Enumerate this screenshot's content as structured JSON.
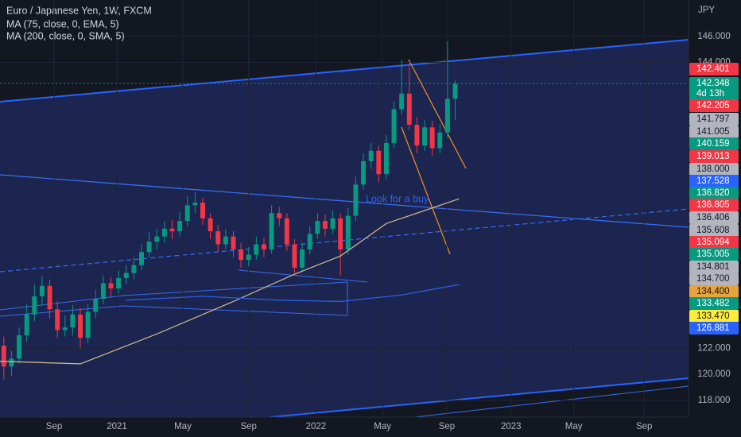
{
  "chart_data": {
    "type": "candlestick",
    "title": "Euro / Japanese Yen, 1W, FXCM",
    "axis_label": "JPY",
    "annotation": "Look for a buy",
    "countdown": "4d 13h",
    "up_color": "#089981",
    "down_color": "#f23645",
    "xlim": [
      -0.5,
      89.5
    ],
    "xticks": [
      {
        "value": 6.57,
        "label": "Sep"
      },
      {
        "value": 14.78,
        "label": "2021"
      },
      {
        "value": 23.4,
        "label": "May"
      },
      {
        "value": 32.0,
        "label": "Sep"
      },
      {
        "value": 40.8,
        "label": "2022"
      },
      {
        "value": 49.5,
        "label": "May"
      },
      {
        "value": 57.9,
        "label": "Sep"
      },
      {
        "value": 66.3,
        "label": "2023"
      },
      {
        "value": 74.5,
        "label": "May"
      },
      {
        "value": 83.7,
        "label": "Sep"
      }
    ],
    "ylim": [
      116.7,
      148.8
    ],
    "yticks": [
      {
        "value": 146,
        "label": "146.000"
      },
      {
        "value": 144,
        "label": "144.000"
      },
      {
        "value": 122,
        "label": "122.000"
      },
      {
        "value": 120,
        "label": "120.000"
      },
      {
        "value": 118,
        "label": "118.000"
      }
    ],
    "grid": true,
    "last_price": 142.35,
    "open": [
      122.2,
      120.6,
      121.2,
      123.0,
      124.6,
      126.0,
      126.8,
      125.0,
      123.4,
      123.6,
      124.6,
      122.8,
      124.8,
      125.8,
      127.0,
      126.6,
      127.4,
      127.8,
      128.4,
      129.4,
      130.2,
      130.6,
      131.2,
      131.0,
      131.8,
      133.0,
      133.2,
      132.0,
      131.0,
      130.0,
      130.6,
      129.6,
      128.8,
      129.2,
      130.0,
      129.6,
      132.4,
      132.0,
      130.0,
      128.2,
      129.6,
      130.8,
      131.8,
      131.2,
      132.0,
      129.6,
      132.2,
      134.6,
      136.4,
      137.2,
      135.4,
      137.8,
      140.4,
      141.6,
      139.2,
      137.6,
      139.0,
      137.4,
      138.6,
      141.2
    ],
    "high": [
      122.9,
      121.8,
      123.6,
      125.4,
      126.9,
      127.6,
      127.3,
      125.6,
      124.5,
      125.3,
      125.1,
      125.4,
      126.5,
      127.6,
      127.5,
      128.0,
      128.4,
      129.0,
      130.0,
      130.9,
      131.2,
      131.8,
      131.9,
      132.5,
      133.7,
      134.0,
      133.6,
      132.4,
      131.5,
      131.2,
      131.0,
      130.1,
      129.8,
      130.6,
      130.5,
      133.0,
      132.9,
      132.4,
      130.4,
      130.1,
      131.4,
      132.4,
      132.3,
      132.6,
      132.4,
      132.8,
      135.2,
      137.0,
      137.8,
      137.6,
      138.4,
      141.0,
      144.2,
      144.0,
      139.8,
      139.6,
      139.5,
      139.2,
      145.6,
      142.6
    ],
    "low": [
      119.6,
      119.9,
      120.8,
      122.5,
      124.1,
      125.3,
      124.3,
      122.8,
      122.9,
      123.0,
      122.0,
      122.4,
      124.3,
      125.4,
      126.0,
      126.2,
      126.9,
      127.3,
      128.0,
      129.0,
      129.6,
      130.1,
      130.4,
      130.6,
      131.4,
      132.4,
      131.5,
      130.4,
      129.4,
      129.6,
      129.0,
      128.2,
      128.3,
      128.8,
      129.0,
      129.3,
      131.4,
      129.5,
      127.8,
      127.9,
      129.2,
      130.4,
      130.6,
      130.8,
      127.6,
      129.2,
      131.8,
      134.2,
      135.8,
      134.8,
      135.0,
      137.4,
      140.0,
      138.8,
      137.0,
      137.2,
      136.8,
      137.0,
      138.2,
      139.6
    ],
    "close": [
      120.6,
      121.2,
      123.0,
      124.6,
      126.0,
      126.8,
      125.0,
      123.4,
      123.6,
      124.6,
      122.8,
      124.8,
      125.8,
      127.0,
      126.6,
      127.4,
      127.8,
      128.4,
      129.4,
      130.2,
      130.6,
      131.2,
      131.0,
      131.8,
      133.0,
      133.2,
      132.0,
      131.0,
      130.0,
      130.6,
      129.6,
      128.8,
      129.2,
      130.0,
      129.6,
      132.4,
      132.0,
      130.0,
      128.2,
      129.6,
      130.8,
      131.8,
      131.2,
      132.0,
      129.6,
      132.2,
      134.6,
      136.4,
      137.2,
      135.4,
      137.8,
      140.4,
      141.6,
      139.2,
      137.6,
      139.0,
      137.4,
      138.6,
      141.2,
      142.35
    ],
    "series": [
      {
        "name": "MA (75, close, 0, EMA, 5)",
        "color": "#c9b48c",
        "x": [
          -0.5,
          10,
          20,
          30,
          38,
          44,
          50,
          55,
          59.5
        ],
        "values": [
          121.0,
          120.8,
          123.1,
          125.6,
          127.7,
          129.1,
          131.6,
          132.6,
          133.5
        ]
      },
      {
        "name": "MA (200, close, 0, SMA, 5)",
        "color": "#2f5be0",
        "x": [
          16,
          26,
          36,
          44,
          52,
          59.5
        ],
        "values": [
          125.7,
          126.0,
          125.7,
          125.6,
          126.1,
          126.9
        ]
      }
    ],
    "price_labels": [
      {
        "text": "142.401",
        "color": "#f23645",
        "text_color": "#ffffff"
      },
      {
        "text": "142.348",
        "color": "#089981",
        "text_color": "#ffffff"
      },
      {
        "text": "142.205",
        "color": "#f23645",
        "text_color": "#ffffff"
      },
      {
        "text": "141.797",
        "color": "#b2b5be",
        "text_color": "#131722"
      },
      {
        "text": "141.005",
        "color": "#b2b5be",
        "text_color": "#131722"
      },
      {
        "text": "140.159",
        "color": "#089981",
        "text_color": "#ffffff"
      },
      {
        "text": "139.013",
        "color": "#f23645",
        "text_color": "#ffffff"
      },
      {
        "text": "138.000",
        "color": "#b2b5be",
        "text_color": "#131722"
      },
      {
        "text": "137.528",
        "color": "#2962ff",
        "text_color": "#ffffff"
      },
      {
        "text": "136.820",
        "color": "#089981",
        "text_color": "#ffffff"
      },
      {
        "text": "136.805",
        "color": "#f23645",
        "text_color": "#ffffff"
      },
      {
        "text": "136.406",
        "color": "#b2b5be",
        "text_color": "#131722"
      },
      {
        "text": "135.608",
        "color": "#b2b5be",
        "text_color": "#131722"
      },
      {
        "text": "135.094",
        "color": "#f23645",
        "text_color": "#ffffff"
      },
      {
        "text": "135.005",
        "color": "#089981",
        "text_color": "#ffffff"
      },
      {
        "text": "134.801",
        "color": "#b2b5be",
        "text_color": "#131722"
      },
      {
        "text": "134.700",
        "color": "#b2b5be",
        "text_color": "#131722"
      },
      {
        "text": "134.400",
        "color": "#e8a33d",
        "text_color": "#131722"
      },
      {
        "text": "133.482",
        "color": "#089981",
        "text_color": "#ffffff"
      },
      {
        "text": "133.470",
        "color": "#ffeb3b",
        "text_color": "#131722"
      },
      {
        "text": "126.881",
        "color": "#2962ff",
        "text_color": "#ffffff"
      }
    ]
  }
}
